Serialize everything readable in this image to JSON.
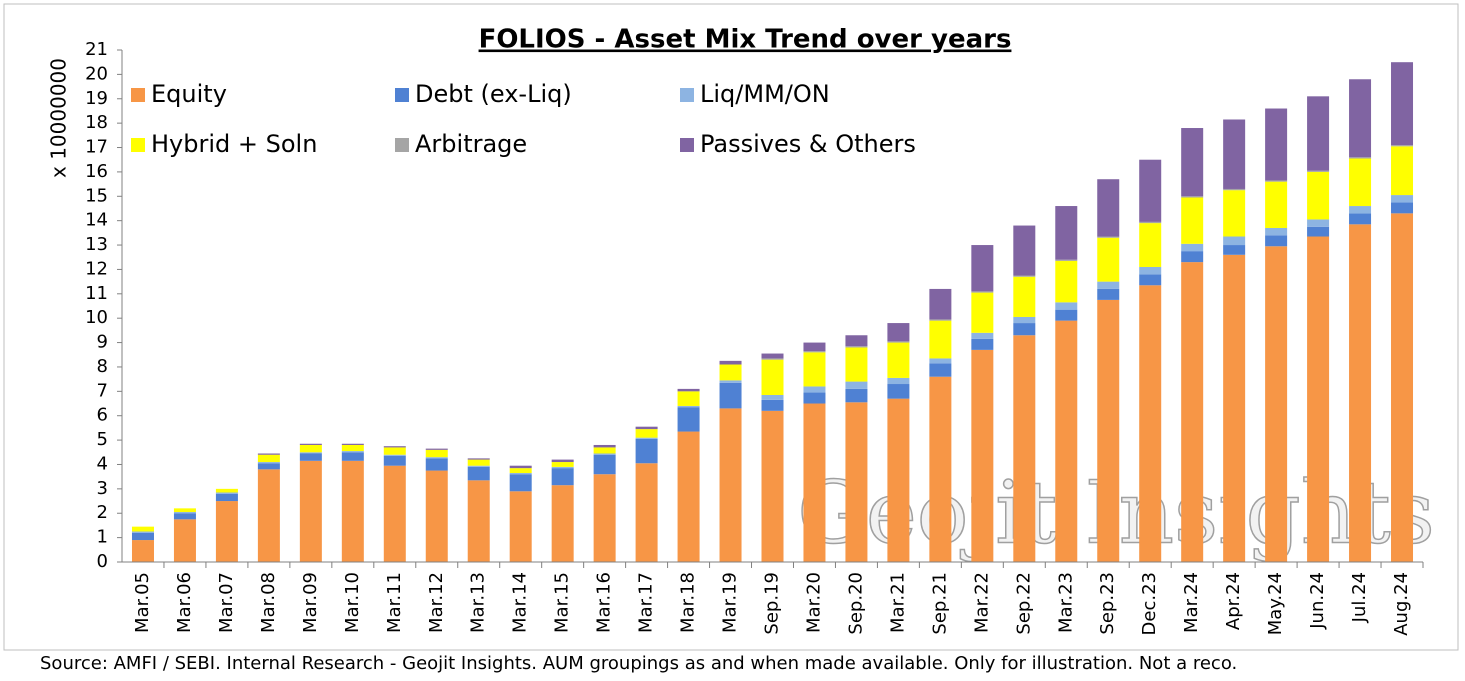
{
  "chart_data": {
    "type": "stacked_bar",
    "title": "FOLIOS - Asset Mix Trend over years",
    "y_label": "x 10000000",
    "source": "Source: AMFI / SEBI. Internal Research - Geojit Insights. AUM groupings as and when made available. Only for illustration. Not a reco.",
    "watermark": "Geojit Insights",
    "categories": [
      "Mar.05",
      "Mar.06",
      "Mar.07",
      "Mar.08",
      "Mar.09",
      "Mar.10",
      "Mar.11",
      "Mar.12",
      "Mar.13",
      "Mar.14",
      "Mar.15",
      "Mar.16",
      "Mar.17",
      "Mar.18",
      "Mar.19",
      "Sep.19",
      "Mar.20",
      "Sep.20",
      "Mar.21",
      "Sep.21",
      "Mar.22",
      "Sep.22",
      "Mar.23",
      "Sep.23",
      "Dec.23",
      "Mar.24",
      "Apr.24",
      "May.24",
      "Jun.24",
      "Jul.24",
      "Aug.24"
    ],
    "series": [
      {
        "name": "Equity",
        "color": "#f79646",
        "values": [
          0.9,
          1.75,
          2.5,
          3.8,
          4.15,
          4.15,
          3.95,
          3.75,
          3.35,
          2.9,
          3.15,
          3.6,
          4.05,
          5.35,
          6.3,
          6.2,
          6.5,
          6.55,
          6.7,
          7.6,
          8.7,
          9.3,
          9.9,
          10.75,
          11.35,
          12.3,
          12.6,
          12.95,
          13.35,
          13.85,
          14.3
        ]
      },
      {
        "name": "Debt (ex-Liq)",
        "color": "#4f81d3",
        "values": [
          0.3,
          0.25,
          0.3,
          0.25,
          0.3,
          0.35,
          0.4,
          0.5,
          0.55,
          0.7,
          0.7,
          0.8,
          1.0,
          1.0,
          1.05,
          0.45,
          0.45,
          0.55,
          0.6,
          0.55,
          0.45,
          0.5,
          0.45,
          0.45,
          0.45,
          0.45,
          0.4,
          0.45,
          0.4,
          0.45,
          0.45
        ]
      },
      {
        "name": "Liq/MM/ON",
        "color": "#8db4e2",
        "values": [
          0.05,
          0.05,
          0.05,
          0.05,
          0.05,
          0.05,
          0.05,
          0.05,
          0.05,
          0.05,
          0.05,
          0.05,
          0.05,
          0.05,
          0.1,
          0.2,
          0.25,
          0.3,
          0.25,
          0.2,
          0.25,
          0.25,
          0.3,
          0.3,
          0.3,
          0.3,
          0.35,
          0.3,
          0.3,
          0.3,
          0.3
        ]
      },
      {
        "name": "Hybrid + Soln",
        "color": "#ffff00",
        "values": [
          0.2,
          0.15,
          0.15,
          0.3,
          0.3,
          0.25,
          0.3,
          0.3,
          0.25,
          0.2,
          0.2,
          0.25,
          0.35,
          0.6,
          0.65,
          1.45,
          1.4,
          1.4,
          1.45,
          1.55,
          1.65,
          1.65,
          1.7,
          1.8,
          1.8,
          1.9,
          1.9,
          1.9,
          1.95,
          1.95,
          2.0
        ]
      },
      {
        "name": "Arbitrage",
        "color": "#a5a5a5",
        "values": [
          0,
          0,
          0,
          0,
          0,
          0,
          0,
          0,
          0,
          0,
          0,
          0,
          0,
          0,
          0,
          0.05,
          0.05,
          0.05,
          0.05,
          0.05,
          0.05,
          0.05,
          0.05,
          0.05,
          0.05,
          0.05,
          0.05,
          0.05,
          0.05,
          0.05,
          0.05
        ]
      },
      {
        "name": "Passives & Others",
        "color": "#8064a2",
        "values": [
          0,
          0,
          0,
          0.05,
          0.05,
          0.05,
          0.05,
          0.05,
          0.05,
          0.1,
          0.1,
          0.1,
          0.1,
          0.1,
          0.15,
          0.2,
          0.35,
          0.45,
          0.75,
          1.25,
          1.9,
          2.05,
          2.2,
          2.35,
          2.55,
          2.8,
          2.85,
          2.95,
          3.05,
          3.2,
          3.4
        ]
      }
    ],
    "ylim": [
      0,
      21
    ],
    "yticks": [
      0,
      1,
      2,
      3,
      4,
      5,
      6,
      7,
      8,
      9,
      10,
      11,
      12,
      13,
      14,
      15,
      16,
      17,
      18,
      19,
      20,
      21
    ],
    "grid": false
  }
}
